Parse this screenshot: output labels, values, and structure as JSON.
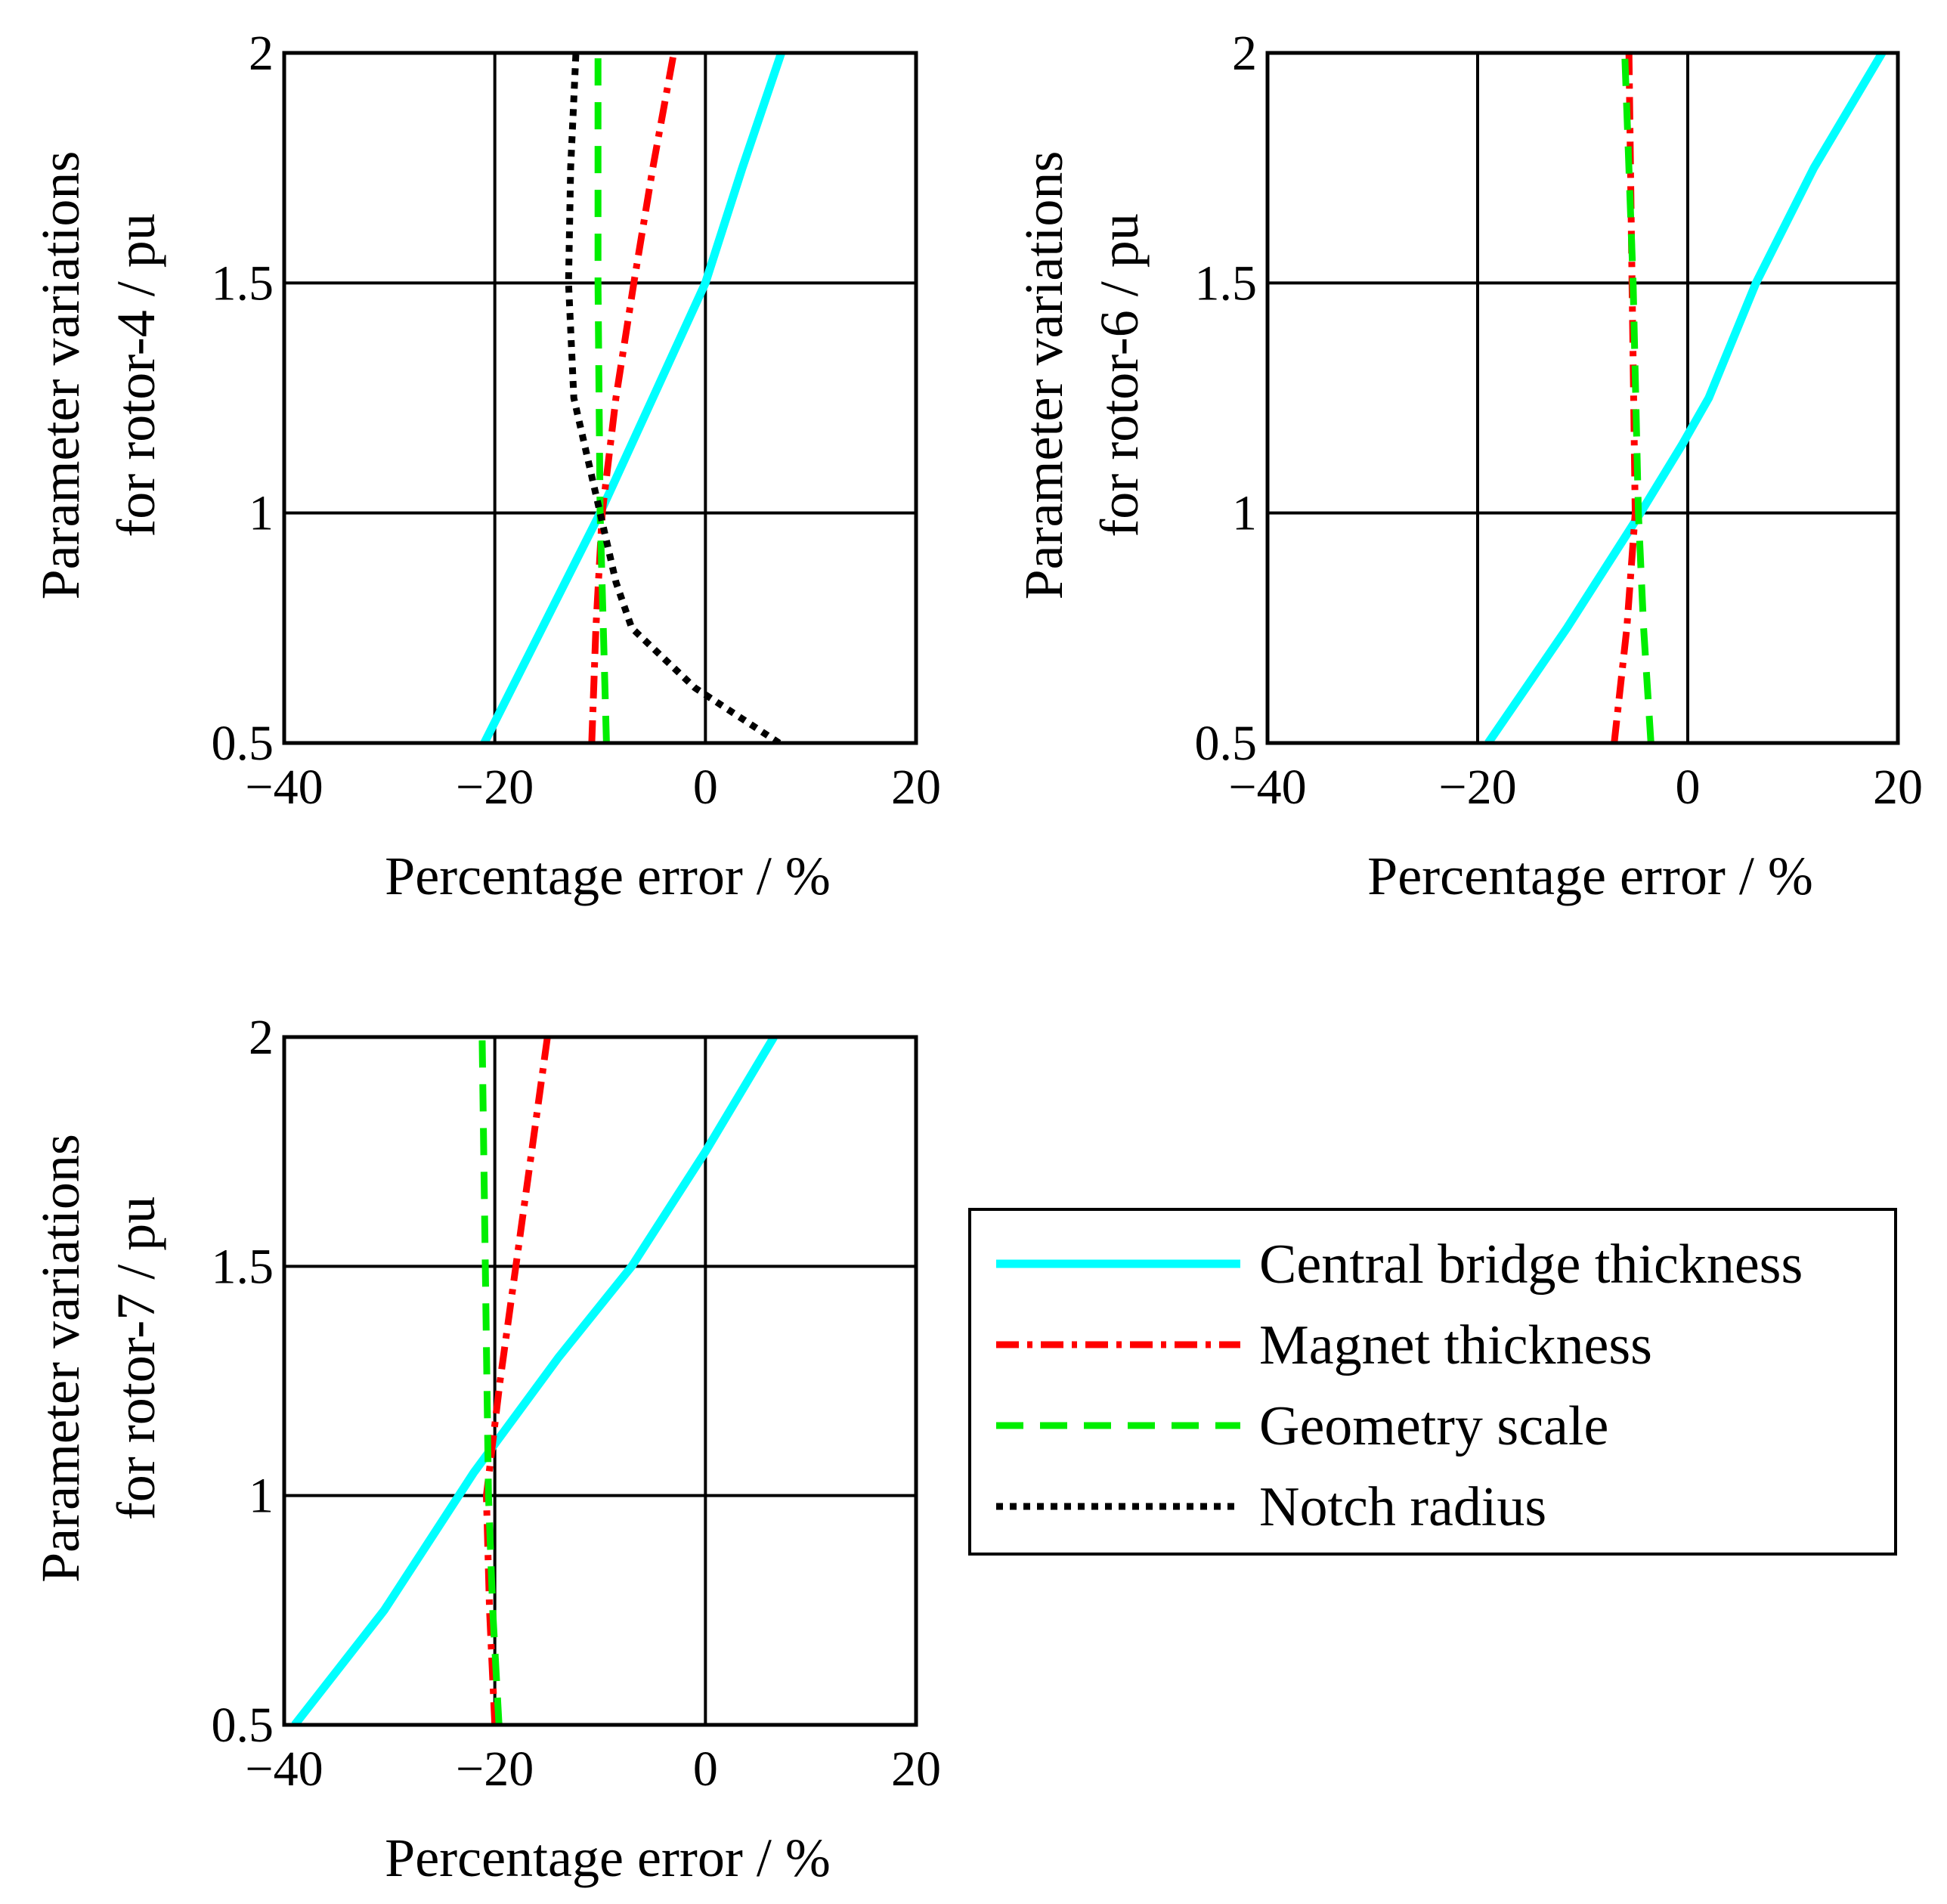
{
  "colors": {
    "axis": "#000000",
    "grid": "#000000",
    "central_bridge": "#00ffff",
    "magnet": "#ff0000",
    "geometry": "#00ee00",
    "notch": "#000000"
  },
  "chart_data": [
    {
      "type": "line",
      "id": "rotor-4",
      "title": "",
      "xlabel": "Percentage error / %",
      "ylabel_line1": "Parameter variations",
      "ylabel_line2": "for rotor-4 / pu",
      "xlim": [
        -40,
        20
      ],
      "ylim": [
        0.5,
        2
      ],
      "grid": true,
      "xticks": [
        -40,
        -20,
        0,
        20
      ],
      "xtick_labels": [
        "−40",
        "−20",
        "0",
        "20"
      ],
      "yticks": [
        0.5,
        1,
        1.5,
        2
      ],
      "ytick_labels": [
        "0.5",
        "1",
        "1.5",
        "2"
      ],
      "series": [
        {
          "name": "Central bridge thickness",
          "style": "solid",
          "color_key": "central_bridge",
          "points": [
            [
              -21,
              0.5
            ],
            [
              -15.5,
              0.75
            ],
            [
              -10,
              1.0
            ],
            [
              -5,
              1.25
            ],
            [
              0,
              1.5
            ],
            [
              3.5,
              1.75
            ],
            [
              7.2,
              2.0
            ]
          ]
        },
        {
          "name": "Magnet thickness",
          "style": "dashdot",
          "color_key": "magnet",
          "points": [
            [
              -10.8,
              0.5
            ],
            [
              -10.4,
              0.75
            ],
            [
              -9.8,
              1.0
            ],
            [
              -8.5,
              1.25
            ],
            [
              -6.8,
              1.5
            ],
            [
              -5,
              1.75
            ],
            [
              -3,
              2.0
            ]
          ]
        },
        {
          "name": "Geometry scale",
          "style": "dashed",
          "color_key": "geometry",
          "points": [
            [
              -9.4,
              0.5
            ],
            [
              -9.7,
              0.75
            ],
            [
              -10,
              1.0
            ],
            [
              -10.1,
              1.25
            ],
            [
              -10.2,
              1.5
            ],
            [
              -10.2,
              1.75
            ],
            [
              -10.2,
              2.0
            ]
          ]
        },
        {
          "name": "Notch radius",
          "style": "dotted",
          "color_key": "notch",
          "points": [
            [
              7,
              0.5
            ],
            [
              -1,
              0.62
            ],
            [
              -7,
              0.75
            ],
            [
              -8.5,
              0.85
            ],
            [
              -10,
              1.0
            ],
            [
              -11,
              1.1
            ],
            [
              -12.5,
              1.25
            ],
            [
              -13,
              1.5
            ],
            [
              -12.8,
              1.75
            ],
            [
              -12.3,
              2.0
            ]
          ]
        }
      ]
    },
    {
      "type": "line",
      "id": "rotor-6",
      "title": "",
      "xlabel": "Percentage error / %",
      "ylabel_line1": "Parameter variations",
      "ylabel_line2": "for rotor-6 / pu",
      "xlim": [
        -40,
        20
      ],
      "ylim": [
        0.5,
        2
      ],
      "grid": true,
      "xticks": [
        -40,
        -20,
        0,
        20
      ],
      "xtick_labels": [
        "−40",
        "−20",
        "0",
        "20"
      ],
      "yticks": [
        0.5,
        1,
        1.5,
        2
      ],
      "ytick_labels": [
        "0.5",
        "1",
        "1.5",
        "2"
      ],
      "series": [
        {
          "name": "Central bridge thickness",
          "style": "solid",
          "color_key": "central_bridge",
          "points": [
            [
              -19,
              0.5
            ],
            [
              -11.5,
              0.75
            ],
            [
              -4.5,
              1.0
            ],
            [
              -0.5,
              1.15
            ],
            [
              2,
              1.25
            ],
            [
              6.5,
              1.5
            ],
            [
              12,
              1.75
            ],
            [
              18.5,
              2.0
            ]
          ]
        },
        {
          "name": "Magnet thickness",
          "style": "dashdot",
          "color_key": "magnet",
          "points": [
            [
              -7,
              0.5
            ],
            [
              -5.8,
              0.75
            ],
            [
              -5,
              1.0
            ],
            [
              -5.3,
              1.5
            ],
            [
              -5.6,
              2.0
            ]
          ]
        },
        {
          "name": "Geometry scale",
          "style": "dashed",
          "color_key": "geometry",
          "points": [
            [
              -3.5,
              0.5
            ],
            [
              -4.2,
              0.75
            ],
            [
              -4.7,
              1.0
            ],
            [
              -5.2,
              1.5
            ],
            [
              -6,
              2.0
            ]
          ]
        }
      ]
    },
    {
      "type": "line",
      "id": "rotor-7",
      "title": "",
      "xlabel": "Percentage error / %",
      "ylabel_line1": "Parameter variations",
      "ylabel_line2": "for rotor-7 / pu",
      "xlim": [
        -40,
        20
      ],
      "ylim": [
        0.5,
        2
      ],
      "grid": true,
      "xticks": [
        -40,
        -20,
        0,
        20
      ],
      "xtick_labels": [
        "−40",
        "−20",
        "0",
        "20"
      ],
      "yticks": [
        0.5,
        1,
        1.5,
        2
      ],
      "ytick_labels": [
        "0.5",
        "1",
        "1.5",
        "2"
      ],
      "series": [
        {
          "name": "Central bridge thickness",
          "style": "solid",
          "color_key": "central_bridge",
          "points": [
            [
              -39,
              0.5
            ],
            [
              -30.5,
              0.75
            ],
            [
              -22,
              1.05
            ],
            [
              -14,
              1.3
            ],
            [
              -7,
              1.5
            ],
            [
              0,
              1.75
            ],
            [
              6.5,
              2.0
            ]
          ]
        },
        {
          "name": "Magnet thickness",
          "style": "dashdot",
          "color_key": "magnet",
          "points": [
            [
              -20,
              0.5
            ],
            [
              -20.5,
              0.75
            ],
            [
              -20.8,
              1.0
            ],
            [
              -19.5,
              1.25
            ],
            [
              -18,
              1.5
            ],
            [
              -16.5,
              1.75
            ],
            [
              -15,
              2.0
            ]
          ]
        },
        {
          "name": "Geometry scale",
          "style": "dashed",
          "color_key": "geometry",
          "points": [
            [
              -19.6,
              0.5
            ],
            [
              -20.2,
              0.75
            ],
            [
              -20.6,
              1.0
            ],
            [
              -20.9,
              1.5
            ],
            [
              -21.2,
              2.0
            ]
          ]
        }
      ]
    }
  ],
  "legend": {
    "placement": "bottom-right",
    "entries": [
      {
        "label": "Central bridge thickness",
        "style": "solid",
        "color_key": "central_bridge"
      },
      {
        "label": "Magnet thickness",
        "style": "dashdot",
        "color_key": "magnet"
      },
      {
        "label": "Geometry scale",
        "style": "dashed",
        "color_key": "geometry"
      },
      {
        "label": "Notch radius",
        "style": "dotted",
        "color_key": "notch"
      }
    ]
  }
}
